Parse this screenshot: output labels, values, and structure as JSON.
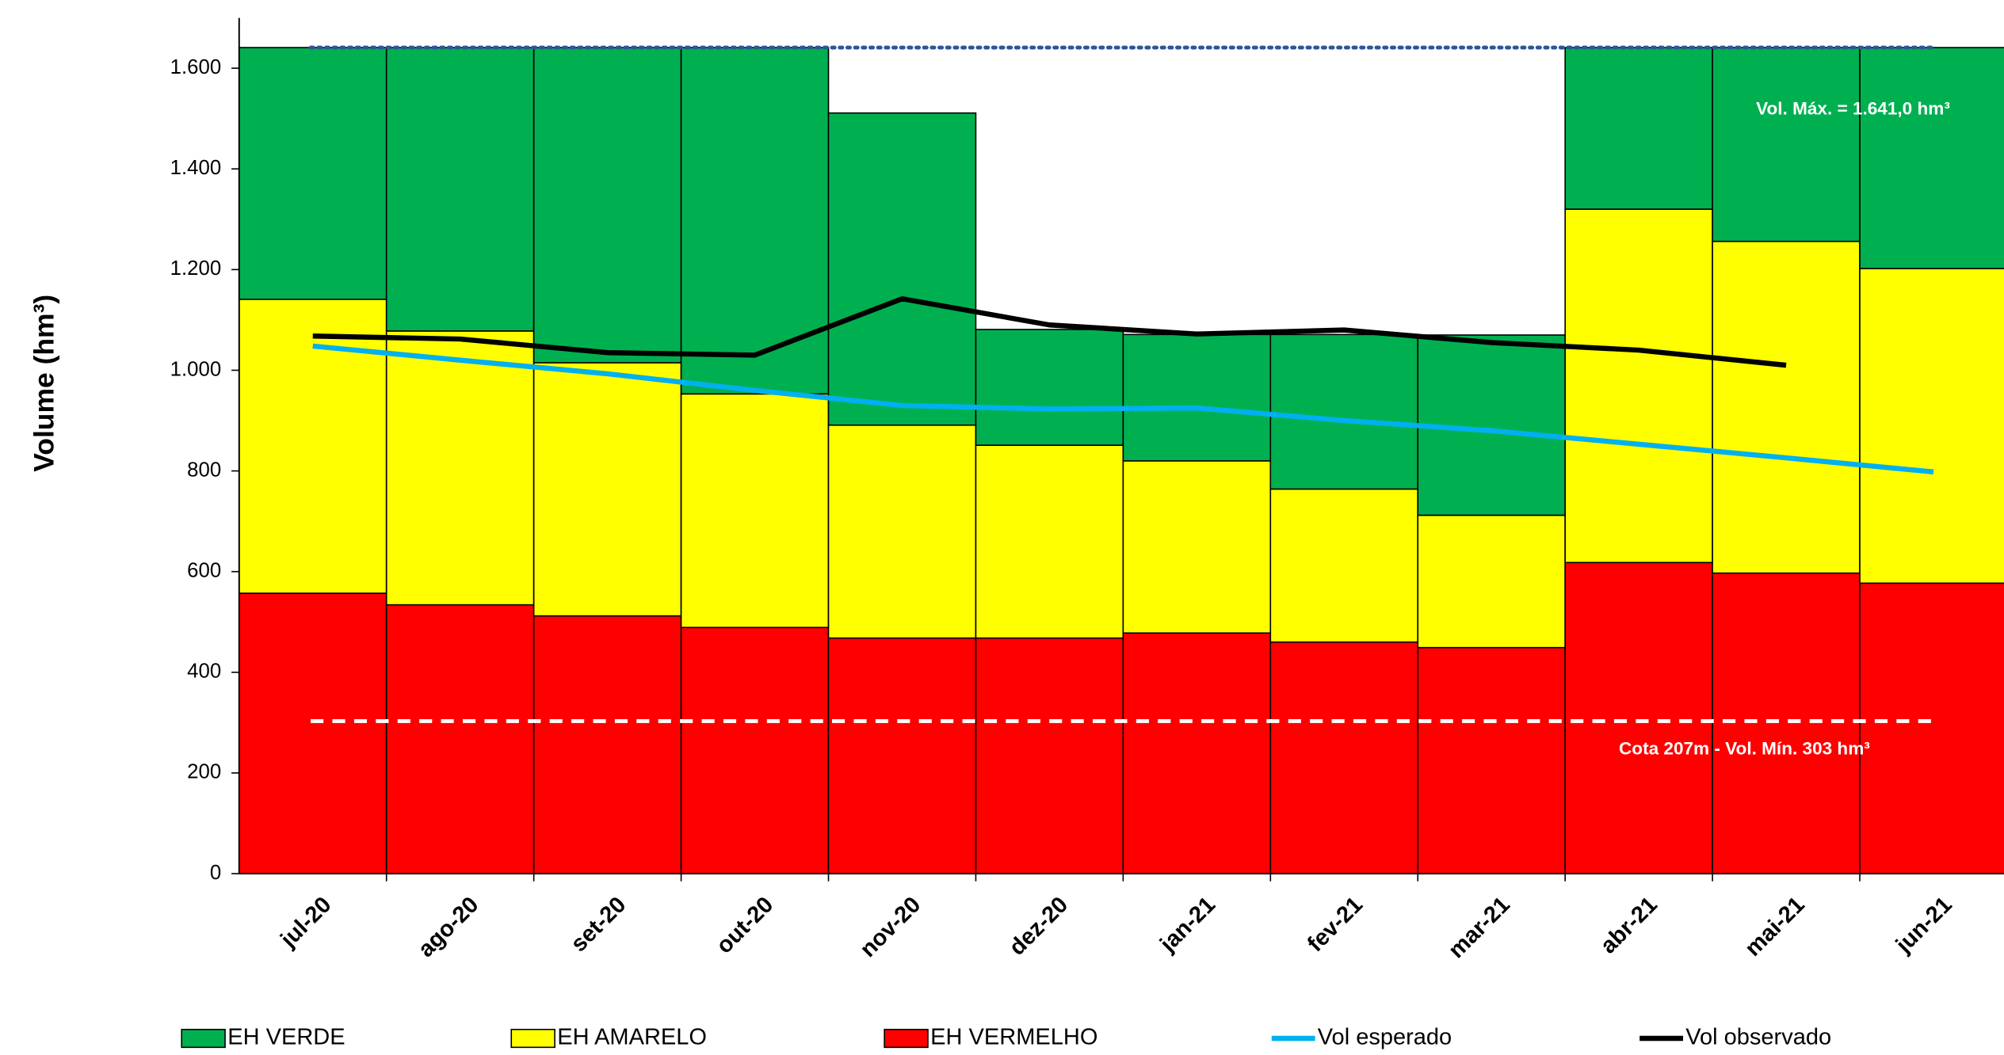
{
  "chart_data": {
    "type": "bar",
    "stacked": true,
    "y_label": "Volume (hm³)",
    "categories": [
      "jul-20",
      "ago-20",
      "set-20",
      "out-20",
      "nov-20",
      "dez-20",
      "jan-21",
      "fev-21",
      "mar-21",
      "abr-21",
      "mai-21",
      "jun-21"
    ],
    "series": [
      {
        "name": "EH VERDE",
        "type": "bar",
        "color": "#00b050",
        "values": [
          500,
          563,
          626,
          688,
          620,
          230,
          251,
          307,
          358,
          321,
          385,
          439
        ]
      },
      {
        "name": "EH AMARELO",
        "type": "bar",
        "color": "#ffff00",
        "values": [
          584,
          544,
          503,
          464,
          423,
          383,
          342,
          304,
          263,
          702,
          659,
          625
        ]
      },
      {
        "name": "EH VERMELHO",
        "type": "bar",
        "color": "#ff0000",
        "values": [
          557,
          534,
          512,
          489,
          468,
          468,
          478,
          460,
          449,
          618,
          597,
          577
        ]
      },
      {
        "name": "Vol esperado",
        "type": "line",
        "color": "#00b0f0",
        "values": [
          1048,
          1020,
          993,
          960,
          930,
          923,
          925,
          900,
          880,
          853,
          826,
          798
        ]
      },
      {
        "name": "Vol observado",
        "type": "line",
        "color": "#000000",
        "values": [
          1068,
          1062,
          1035,
          1030,
          1142,
          1090,
          1072,
          1080,
          1055,
          1040,
          1010,
          null
        ]
      }
    ],
    "reference_lines": [
      {
        "value": 1641,
        "label": "Vol. Máx. = 1.641,0 hm³",
        "color": "#2f5597",
        "style": "dotted"
      },
      {
        "value": 303,
        "label": "Cota 207m - Vol. Mín.  303 hm³",
        "color": "#ffffff",
        "style": "dashed"
      }
    ],
    "ylim": [
      0,
      1700
    ],
    "yticks": [
      0,
      200,
      400,
      600,
      800,
      {
        "value": 1000,
        "label": "1.000"
      },
      {
        "value": 1200,
        "label": "1.200"
      },
      {
        "value": 1400,
        "label": "1.400"
      },
      {
        "value": 1600,
        "label": "1.600"
      }
    ],
    "legend": "bottom"
  }
}
